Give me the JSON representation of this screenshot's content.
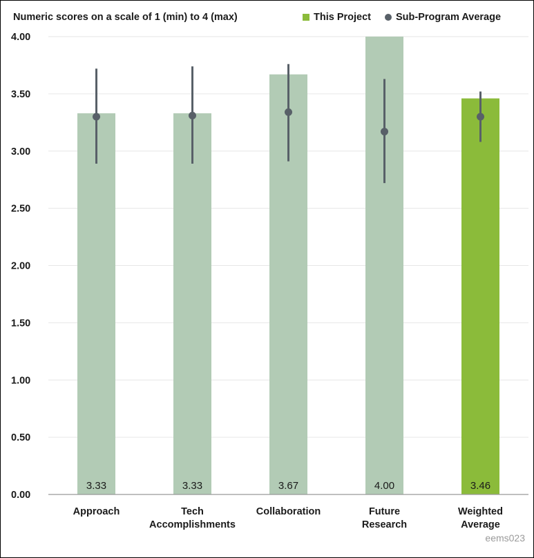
{
  "chart_data": {
    "type": "bar",
    "subtitle": "Numeric scores on a scale of 1 (min) to 4 (max)",
    "categories": [
      "Approach",
      "Tech\nAccomplishments",
      "Collaboration",
      "Future\nResearch",
      "Weighted\nAverage"
    ],
    "series": [
      {
        "name": "This Project",
        "values": [
          3.33,
          3.33,
          3.67,
          4.0,
          3.46
        ]
      },
      {
        "name": "Sub-Program Average",
        "values": [
          3.3,
          3.31,
          3.34,
          3.17,
          3.3
        ],
        "error_low": [
          2.89,
          2.89,
          2.91,
          2.72,
          3.08
        ],
        "error_high": [
          3.72,
          3.74,
          3.76,
          3.63,
          3.52
        ]
      }
    ],
    "data_labels": [
      "3.33",
      "3.33",
      "3.67",
      "4.00",
      "3.46"
    ],
    "y_ticks": [
      "0.00",
      "0.50",
      "1.00",
      "1.50",
      "2.00",
      "2.50",
      "3.00",
      "3.50",
      "4.00"
    ],
    "ylim": [
      0,
      4
    ],
    "grid": true,
    "legend_position": "top-right",
    "colors": {
      "bar": "#b2cbb5",
      "highlight_bar": "#8bbb3a",
      "dot": "#586068",
      "grid": "#e6e6e6",
      "axis": "#999999"
    }
  },
  "legend": {
    "project_label": "This Project",
    "average_label": "Sub-Program Average"
  },
  "watermark": "eems023"
}
